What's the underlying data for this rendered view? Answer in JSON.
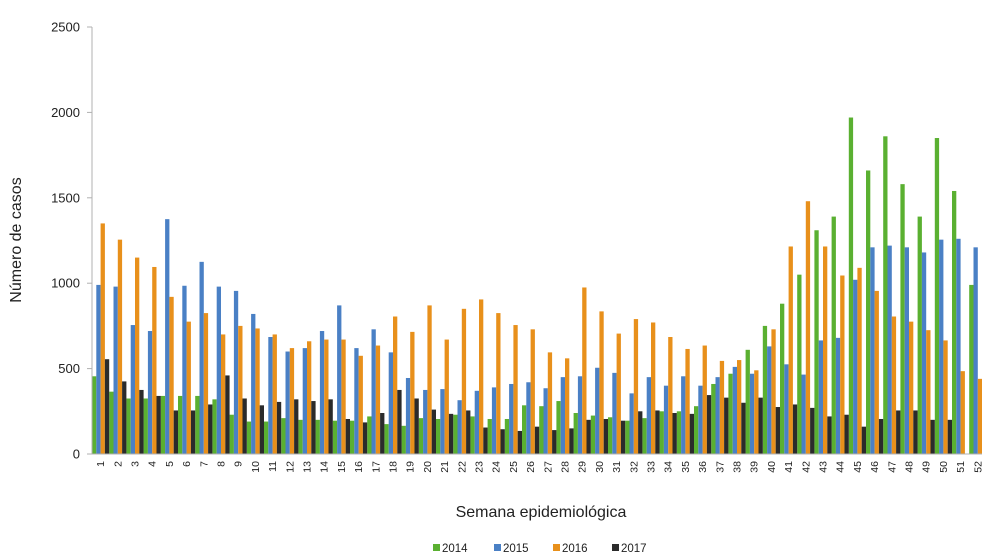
{
  "chart_data": {
    "type": "bar",
    "title": "",
    "xlabel": "Semana epidemiológica",
    "ylabel": "Número de casos",
    "ylim": [
      0,
      2500
    ],
    "yticks": [
      0,
      500,
      1000,
      1500,
      2000,
      2500
    ],
    "grid": false,
    "legend_position": "bottom",
    "categories": [
      "1",
      "2",
      "3",
      "4",
      "5",
      "6",
      "7",
      "8",
      "9",
      "10",
      "11",
      "12",
      "13",
      "14",
      "15",
      "16",
      "17",
      "18",
      "19",
      "20",
      "21",
      "22",
      "23",
      "24",
      "25",
      "26",
      "27",
      "28",
      "29",
      "30",
      "31",
      "32",
      "33",
      "34",
      "35",
      "36",
      "37",
      "38",
      "39",
      "40",
      "41",
      "42",
      "43",
      "44",
      "45",
      "46",
      "47",
      "48",
      "49",
      "50",
      "51",
      "52"
    ],
    "series": [
      {
        "name": "2014",
        "color": "#5ab031",
        "values": [
          455,
          365,
          325,
          325,
          340,
          340,
          340,
          320,
          230,
          190,
          190,
          210,
          200,
          200,
          195,
          195,
          220,
          175,
          165,
          210,
          205,
          230,
          220,
          205,
          205,
          285,
          280,
          310,
          240,
          225,
          215,
          195,
          210,
          250,
          250,
          280,
          410,
          470,
          610,
          750,
          880,
          1050,
          1310,
          1390,
          1970,
          1660,
          1860,
          1580,
          1390,
          1850,
          1540,
          990
        ]
      },
      {
        "name": "2015",
        "color": "#4a80c5",
        "values": [
          990,
          980,
          755,
          720,
          1375,
          985,
          1125,
          980,
          955,
          820,
          685,
          600,
          620,
          720,
          870,
          620,
          730,
          595,
          445,
          375,
          380,
          315,
          370,
          390,
          410,
          420,
          385,
          450,
          455,
          505,
          475,
          355,
          450,
          400,
          455,
          400,
          450,
          510,
          470,
          630,
          525,
          465,
          665,
          680,
          1020,
          1210,
          1220,
          1210,
          1180,
          1255,
          1260,
          1210
        ]
      },
      {
        "name": "2016",
        "color": "#e8901b",
        "values": [
          1350,
          1255,
          1150,
          1095,
          920,
          775,
          825,
          700,
          750,
          735,
          700,
          620,
          660,
          670,
          670,
          575,
          635,
          805,
          715,
          870,
          670,
          850,
          905,
          825,
          755,
          730,
          595,
          560,
          975,
          835,
          705,
          790,
          770,
          685,
          615,
          635,
          545,
          550,
          490,
          730,
          1215,
          1480,
          1215,
          1045,
          1090,
          955,
          805,
          775,
          725,
          665,
          485,
          440
        ]
      },
      {
        "name": "2017",
        "color": "#2b2b2b",
        "values": [
          555,
          425,
          375,
          340,
          255,
          255,
          290,
          460,
          325,
          285,
          305,
          320,
          310,
          320,
          205,
          185,
          240,
          375,
          325,
          260,
          235,
          255,
          155,
          145,
          135,
          160,
          140,
          150,
          200,
          205,
          195,
          250,
          255,
          240,
          235,
          345,
          330,
          300,
          330,
          275,
          290,
          270,
          220,
          230,
          160,
          205,
          255,
          255,
          200,
          200,
          null,
          null
        ]
      }
    ]
  }
}
